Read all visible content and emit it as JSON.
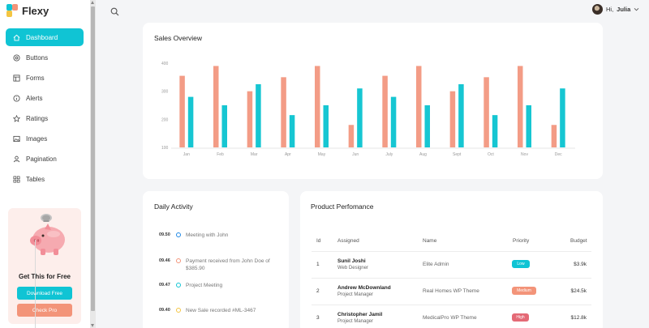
{
  "app": {
    "name": "Flexy"
  },
  "sidebar": {
    "items": [
      {
        "label": "Dashboard",
        "icon": "home-icon",
        "active": true
      },
      {
        "label": "Buttons",
        "icon": "circle-dot-icon"
      },
      {
        "label": "Forms",
        "icon": "layout-icon"
      },
      {
        "label": "Alerts",
        "icon": "info-icon"
      },
      {
        "label": "Ratings",
        "icon": "star-icon"
      },
      {
        "label": "Images",
        "icon": "image-icon"
      },
      {
        "label": "Pagination",
        "icon": "user-icon"
      },
      {
        "label": "Tables",
        "icon": "grid-icon"
      }
    ],
    "promo": {
      "title": "Get This for Free",
      "download_label": "Download Free",
      "check_label": "Check Pro"
    }
  },
  "topbar": {
    "greeting": "Hi,",
    "user_name": "Julia"
  },
  "sales": {
    "title": "Sales Overview",
    "chart_data": {
      "type": "bar",
      "categories": [
        "Jan",
        "Feb",
        "Mar",
        "Apr",
        "May",
        "Jun",
        "July",
        "Aug",
        "Sept",
        "Oct",
        "Nov",
        "Dec"
      ],
      "series": [
        {
          "values": [
            355,
            390,
            300,
            350,
            390,
            180,
            355,
            390,
            300,
            350,
            390,
            180
          ]
        },
        {
          "values": [
            280,
            250,
            325,
            215,
            250,
            310,
            280,
            250,
            325,
            215,
            250,
            310
          ]
        }
      ],
      "yticks": [
        100,
        200,
        300,
        400
      ],
      "ylim": [
        100,
        400
      ],
      "colors": [
        "#f39c86",
        "#16c6d2"
      ]
    }
  },
  "daily": {
    "title": "Daily Activity",
    "items": [
      {
        "time": "09.50",
        "text": "Meeting with John",
        "color": "#1e88e5"
      },
      {
        "time": "09.46",
        "text": "Payment received from John Doe of $385.90",
        "color": "#f39479"
      },
      {
        "time": "09.47",
        "text": "Project Meeting",
        "color": "#10c4d4"
      },
      {
        "time": "09.40",
        "text": "New Sale recorded #ML-3467",
        "color": "#f4c542"
      }
    ]
  },
  "product": {
    "title": "Product Perfomance",
    "headers": {
      "id": "Id",
      "assigned": "Assigned",
      "name": "Name",
      "priority": "Priority",
      "budget": "Budget"
    },
    "rows": [
      {
        "id": "1",
        "name": "Sunil Joshi",
        "role": "Web Designer",
        "product": "Elite Admin",
        "priority": "Low",
        "color": "#10c4d4",
        "budget": "$3.9k"
      },
      {
        "id": "2",
        "name": "Andrew McDownland",
        "role": "Project Manager",
        "product": "Real Homes WP Theme",
        "priority": "Medium",
        "color": "#f39479",
        "budget": "$24.5k"
      },
      {
        "id": "3",
        "name": "Christopher Jamil",
        "role": "Project Manager",
        "product": "MedicalPro WP Theme",
        "priority": "High",
        "color": "#e46a76",
        "budget": "$12.8k"
      }
    ]
  }
}
